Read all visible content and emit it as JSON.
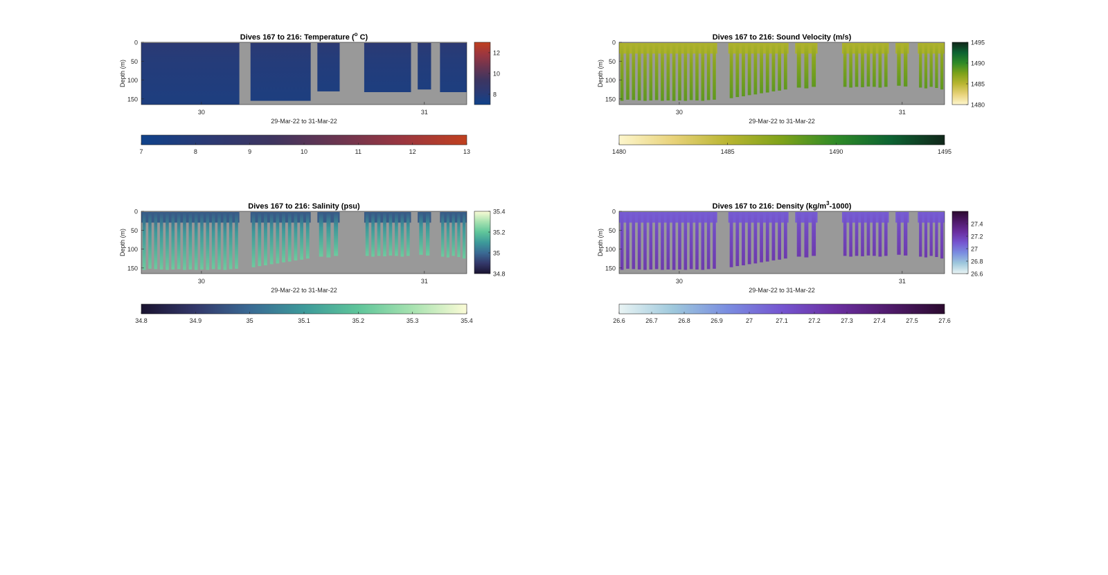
{
  "figure": {
    "background": "#ffffff",
    "missing_color": "#999999"
  },
  "chart_data": [
    {
      "id": "temperature",
      "type": "heatmap",
      "title": "Dives 167 to 216: Temperature (°C)",
      "title_main": "Dives 167 to 216: Temperature (",
      "title_sup": "o",
      "title_end": " C)",
      "xlabel": "29-Mar-22 to 31-Mar-22",
      "ylabel": "Depth (m)",
      "xlim": [
        29.73,
        31.19
      ],
      "ylim": [
        0,
        165
      ],
      "xticks": [
        30,
        31
      ],
      "xtick_labels": [
        "30",
        "31"
      ],
      "yticks": [
        0,
        50,
        100,
        150
      ],
      "ytick_labels": [
        "0",
        "50",
        "100",
        "150"
      ],
      "clim": [
        7,
        13
      ],
      "colorbar_ticks": [
        8,
        10,
        12
      ],
      "colorbar_tick_labels": [
        "8",
        "10",
        "12"
      ],
      "bottom_colorbar_ticks": [
        7,
        8,
        9,
        10,
        11,
        12,
        13
      ],
      "bottom_colorbar_tick_labels": [
        "7",
        "8",
        "9",
        "10",
        "11",
        "12",
        "13"
      ],
      "colormap": [
        "#10428a",
        "#2b3a74",
        "#3e3560",
        "#6a3550",
        "#9a3640",
        "#c0401f"
      ],
      "value_surface": 8.2,
      "value_deep": 7.6,
      "layout": "blocks",
      "blocks": [
        {
          "x0": 29.73,
          "x1": 30.17,
          "depth": 165
        },
        {
          "x0": 30.22,
          "x1": 30.49,
          "depth": 155
        },
        {
          "x0": 30.52,
          "x1": 30.62,
          "depth": 130
        },
        {
          "x0": 30.73,
          "x1": 30.94,
          "depth": 132
        },
        {
          "x0": 30.97,
          "x1": 31.03,
          "depth": 125
        },
        {
          "x0": 31.07,
          "x1": 31.19,
          "depth": 132
        }
      ]
    },
    {
      "id": "sound-velocity",
      "type": "heatmap",
      "title": "Dives 167 to 216: Sound Velocity (m/s)",
      "title_main": "Dives 167 to 216: Sound Velocity (m/s)",
      "title_sup": "",
      "title_end": "",
      "xlabel": "29-Mar-22 to 31-Mar-22",
      "ylabel": "Depth (m)",
      "xlim": [
        29.73,
        31.19
      ],
      "ylim": [
        0,
        165
      ],
      "xticks": [
        30,
        31
      ],
      "xtick_labels": [
        "30",
        "31"
      ],
      "yticks": [
        0,
        50,
        100,
        150
      ],
      "ytick_labels": [
        "0",
        "50",
        "100",
        "150"
      ],
      "clim": [
        1480,
        1495
      ],
      "colorbar_ticks": [
        1480,
        1485,
        1490,
        1495
      ],
      "colorbar_tick_labels": [
        "1480",
        "1485",
        "1490",
        "1495"
      ],
      "bottom_colorbar_ticks": [
        1480,
        1485,
        1490,
        1495
      ],
      "bottom_colorbar_tick_labels": [
        "1480",
        "1485",
        "1490",
        "1495"
      ],
      "colormap": [
        "#fdf6cc",
        "#e8d27a",
        "#b9b532",
        "#7ea21a",
        "#2f8a27",
        "#0d6332",
        "#11261a"
      ],
      "value_surface": 1485.5,
      "value_deep": 1488.5,
      "layout": "profiles",
      "surface_depth": 30,
      "profiles": [
        {
          "x0": 29.73,
          "x1": 30.17,
          "n": 17,
          "max_depths": [
            155,
            152,
            153,
            154,
            155,
            154,
            153,
            155,
            154,
            155,
            154,
            155,
            153,
            154,
            155,
            153,
            152
          ]
        },
        {
          "x0": 30.22,
          "x1": 30.49,
          "n": 10,
          "max_depths": [
            148,
            145,
            143,
            140,
            138,
            135,
            133,
            130,
            128,
            125
          ]
        },
        {
          "x0": 30.52,
          "x1": 30.62,
          "n": 3,
          "max_depths": [
            120,
            122,
            118
          ]
        },
        {
          "x0": 30.73,
          "x1": 30.94,
          "n": 8,
          "max_depths": [
            118,
            120,
            118,
            119,
            117,
            118,
            120,
            118
          ]
        },
        {
          "x0": 30.97,
          "x1": 31.03,
          "n": 2,
          "max_depths": [
            115,
            117
          ]
        },
        {
          "x0": 31.07,
          "x1": 31.19,
          "n": 5,
          "max_depths": [
            120,
            122,
            118,
            121,
            125
          ]
        }
      ]
    },
    {
      "id": "salinity",
      "type": "heatmap",
      "title": "Dives 167 to 216: Salinity (psu)",
      "title_main": "Dives 167 to 216: Salinity (psu)",
      "title_sup": "",
      "title_end": "",
      "xlabel": "29-Mar-22 to 31-Mar-22",
      "ylabel": "Depth (m)",
      "xlim": [
        29.73,
        31.19
      ],
      "ylim": [
        0,
        165
      ],
      "xticks": [
        30,
        31
      ],
      "xtick_labels": [
        "30",
        "31"
      ],
      "yticks": [
        0,
        50,
        100,
        150
      ],
      "ytick_labels": [
        "0",
        "50",
        "100",
        "150"
      ],
      "clim": [
        34.8,
        35.4
      ],
      "colorbar_ticks": [
        34.8,
        35,
        35.2,
        35.4
      ],
      "colorbar_tick_labels": [
        "34.8",
        "35",
        "35.2",
        "35.4"
      ],
      "bottom_colorbar_ticks": [
        34.8,
        34.9,
        35,
        35.1,
        35.2,
        35.3,
        35.4
      ],
      "bottom_colorbar_tick_labels": [
        "34.8",
        "34.9",
        "35",
        "35.1",
        "35.2",
        "35.3",
        "35.4"
      ],
      "colormap": [
        "#1a1330",
        "#33386a",
        "#3a6a94",
        "#3d9a9a",
        "#5fc59a",
        "#a7e2b0",
        "#fbfbd6"
      ],
      "value_surface": 34.97,
      "value_deep": 35.22,
      "layout": "profiles",
      "surface_depth": 30,
      "profiles": [
        {
          "x0": 29.73,
          "x1": 30.17,
          "n": 17,
          "max_depths": [
            155,
            152,
            153,
            154,
            155,
            154,
            153,
            155,
            154,
            155,
            154,
            155,
            153,
            154,
            155,
            153,
            152
          ]
        },
        {
          "x0": 30.22,
          "x1": 30.49,
          "n": 10,
          "max_depths": [
            148,
            145,
            143,
            140,
            138,
            135,
            133,
            130,
            128,
            125
          ]
        },
        {
          "x0": 30.52,
          "x1": 30.62,
          "n": 3,
          "max_depths": [
            120,
            122,
            118
          ]
        },
        {
          "x0": 30.73,
          "x1": 30.94,
          "n": 8,
          "max_depths": [
            118,
            120,
            118,
            119,
            117,
            118,
            120,
            118
          ]
        },
        {
          "x0": 30.97,
          "x1": 31.03,
          "n": 2,
          "max_depths": [
            115,
            117
          ]
        },
        {
          "x0": 31.07,
          "x1": 31.19,
          "n": 5,
          "max_depths": [
            120,
            122,
            118,
            121,
            125
          ]
        }
      ]
    },
    {
      "id": "density",
      "type": "heatmap",
      "title": "Dives 167 to 216: Density (kg/m³-1000)",
      "title_main": "Dives 167 to 216: Density (kg/m",
      "title_sup": "3",
      "title_end": "-1000)",
      "xlabel": "29-Mar-22 to 31-Mar-22",
      "ylabel": "Depth (m)",
      "xlim": [
        29.73,
        31.19
      ],
      "ylim": [
        0,
        165
      ],
      "xticks": [
        30,
        31
      ],
      "xtick_labels": [
        "30",
        "31"
      ],
      "yticks": [
        0,
        50,
        100,
        150
      ],
      "ytick_labels": [
        "0",
        "50",
        "100",
        "150"
      ],
      "clim": [
        26.6,
        27.6
      ],
      "colorbar_ticks": [
        26.6,
        26.8,
        27,
        27.2,
        27.4
      ],
      "colorbar_tick_labels": [
        "26.6",
        "26.8",
        "27",
        "27.2",
        "27.4"
      ],
      "bottom_colorbar_ticks": [
        26.6,
        26.7,
        26.8,
        26.9,
        27,
        27.1,
        27.2,
        27.3,
        27.4,
        27.5,
        27.6
      ],
      "bottom_colorbar_tick_labels": [
        "26.6",
        "26.7",
        "26.8",
        "26.9",
        "27",
        "27.1",
        "27.2",
        "27.3",
        "27.4",
        "27.5",
        "27.6"
      ],
      "colormap": [
        "#e9f4f4",
        "#9ec8dc",
        "#7a8de0",
        "#7555d0",
        "#6a2fa0",
        "#4f1a6a",
        "#2b0a2e"
      ],
      "value_surface": 27.08,
      "value_deep": 27.22,
      "layout": "profiles",
      "surface_depth": 30,
      "profiles": [
        {
          "x0": 29.73,
          "x1": 30.17,
          "n": 17,
          "max_depths": [
            155,
            152,
            153,
            154,
            155,
            154,
            153,
            155,
            154,
            155,
            154,
            155,
            153,
            154,
            155,
            153,
            152
          ]
        },
        {
          "x0": 30.22,
          "x1": 30.49,
          "n": 10,
          "max_depths": [
            148,
            145,
            143,
            140,
            138,
            135,
            133,
            130,
            128,
            125
          ]
        },
        {
          "x0": 30.52,
          "x1": 30.62,
          "n": 3,
          "max_depths": [
            120,
            122,
            118
          ]
        },
        {
          "x0": 30.73,
          "x1": 30.94,
          "n": 8,
          "max_depths": [
            118,
            120,
            118,
            119,
            117,
            118,
            120,
            118
          ]
        },
        {
          "x0": 30.97,
          "x1": 31.03,
          "n": 2,
          "max_depths": [
            115,
            117
          ]
        },
        {
          "x0": 31.07,
          "x1": 31.19,
          "n": 5,
          "max_depths": [
            120,
            122,
            118,
            121,
            125
          ]
        }
      ]
    }
  ]
}
